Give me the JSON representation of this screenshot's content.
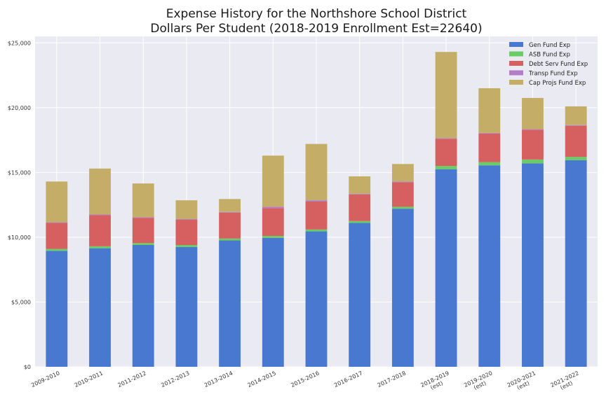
{
  "chart_data": {
    "type": "bar",
    "stacked": true,
    "title_lines": [
      "Expense History for the Northshore School District",
      "Dollars Per Student (2018-2019 Enrollment Est=22640)"
    ],
    "xlabel": "",
    "ylabel": "",
    "ylim": [
      0,
      25500
    ],
    "yticks": [
      0,
      5000,
      10000,
      15000,
      20000,
      25000
    ],
    "ytick_labels": [
      "$0",
      "$5,000",
      "$10,000",
      "$15,000",
      "$20,000",
      "$25,000"
    ],
    "grid": true,
    "legend_position": "top-right",
    "categories": [
      [
        "2009-2010"
      ],
      [
        "2010-2011"
      ],
      [
        "2011-2012"
      ],
      [
        "2012-2013"
      ],
      [
        "2013-2014"
      ],
      [
        "2014-2015"
      ],
      [
        "2015-2016"
      ],
      [
        "2016-2017"
      ],
      [
        "2017-2018"
      ],
      [
        "2018-2019",
        "(est)"
      ],
      [
        "2019-2020",
        "(est)"
      ],
      [
        "2020-2021",
        "(est)"
      ],
      [
        "2021-2022",
        "(est)"
      ]
    ],
    "series": [
      {
        "name": "Gen Fund Exp",
        "color": "#4878cf",
        "values": [
          8950,
          9150,
          9400,
          9250,
          9750,
          9950,
          10450,
          11100,
          12200,
          15250,
          15550,
          15700,
          15950
        ]
      },
      {
        "name": "ASB Fund Exp",
        "color": "#6acc65",
        "values": [
          150,
          150,
          150,
          150,
          150,
          150,
          150,
          150,
          150,
          250,
          250,
          300,
          250
        ]
      },
      {
        "name": "Debt Serv Fund Exp",
        "color": "#d65f5f",
        "values": [
          2000,
          2400,
          1950,
          1950,
          2000,
          2150,
          2150,
          2050,
          1900,
          2100,
          2200,
          2300,
          2400
        ]
      },
      {
        "name": "Transp Fund Exp",
        "color": "#b47cc7",
        "values": [
          50,
          50,
          50,
          50,
          50,
          100,
          100,
          50,
          50,
          50,
          50,
          50,
          50
        ]
      },
      {
        "name": "Cap Projs Fund Exp",
        "color": "#c4ad66",
        "values": [
          3150,
          3550,
          2600,
          1450,
          1000,
          3950,
          4350,
          1350,
          1350,
          6650,
          3450,
          2400,
          1450
        ]
      }
    ]
  }
}
